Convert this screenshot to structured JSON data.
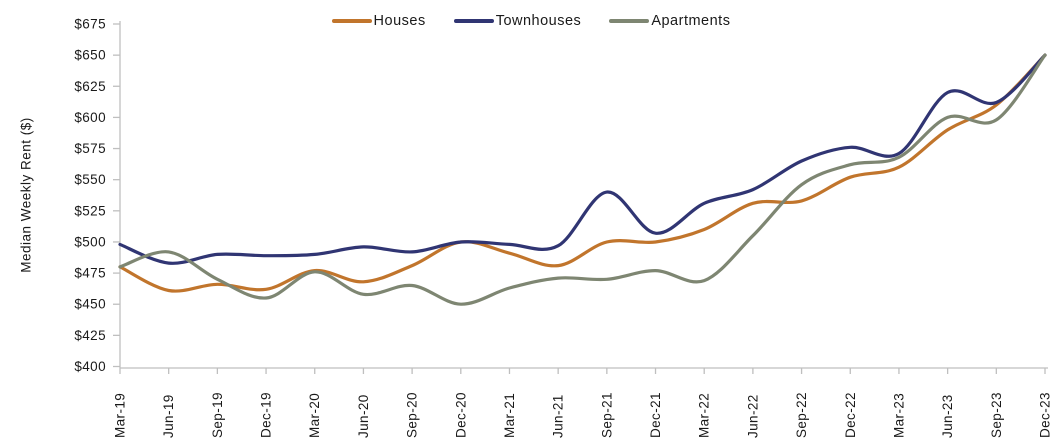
{
  "chart": {
    "y_axis_title": "Median Weekly Rent ($)"
  },
  "colors": {
    "axis_line": "#BFBFBF",
    "tick_text": "#1a1a1a",
    "background": "#ffffff"
  },
  "chart_data": {
    "type": "line",
    "smoothed": true,
    "title": "",
    "xlabel": "",
    "ylabel": "Median Weekly Rent ($)",
    "ylim": [
      400,
      675
    ],
    "ytick_step": 25,
    "ytick_prefix": "$",
    "grid": false,
    "legend_position": "top",
    "categories": [
      "Mar-19",
      "Jun-19",
      "Sep-19",
      "Dec-19",
      "Mar-20",
      "Jun-20",
      "Sep-20",
      "Dec-20",
      "Mar-21",
      "Jun-21",
      "Sep-21",
      "Dec-21",
      "Mar-22",
      "Jun-22",
      "Sep-22",
      "Dec-22",
      "Mar-23",
      "Jun-23",
      "Sep-23",
      "Dec-23"
    ],
    "series": [
      {
        "name": "Houses",
        "color": "#C1752C",
        "values": [
          480,
          461,
          466,
          462,
          477,
          468,
          481,
          500,
          491,
          481,
          500,
          500,
          510,
          531,
          533,
          552,
          560,
          590,
          610,
          650
        ]
      },
      {
        "name": "Townhouses",
        "color": "#303573",
        "values": [
          498,
          483,
          490,
          489,
          490,
          496,
          492,
          500,
          498,
          497,
          540,
          507,
          531,
          542,
          565,
          576,
          571,
          620,
          612,
          650
        ]
      },
      {
        "name": "Apartments",
        "color": "#7E8672",
        "values": [
          480,
          492,
          470,
          455,
          476,
          458,
          465,
          450,
          463,
          471,
          470,
          477,
          469,
          505,
          546,
          562,
          568,
          600,
          598,
          650
        ]
      }
    ]
  }
}
